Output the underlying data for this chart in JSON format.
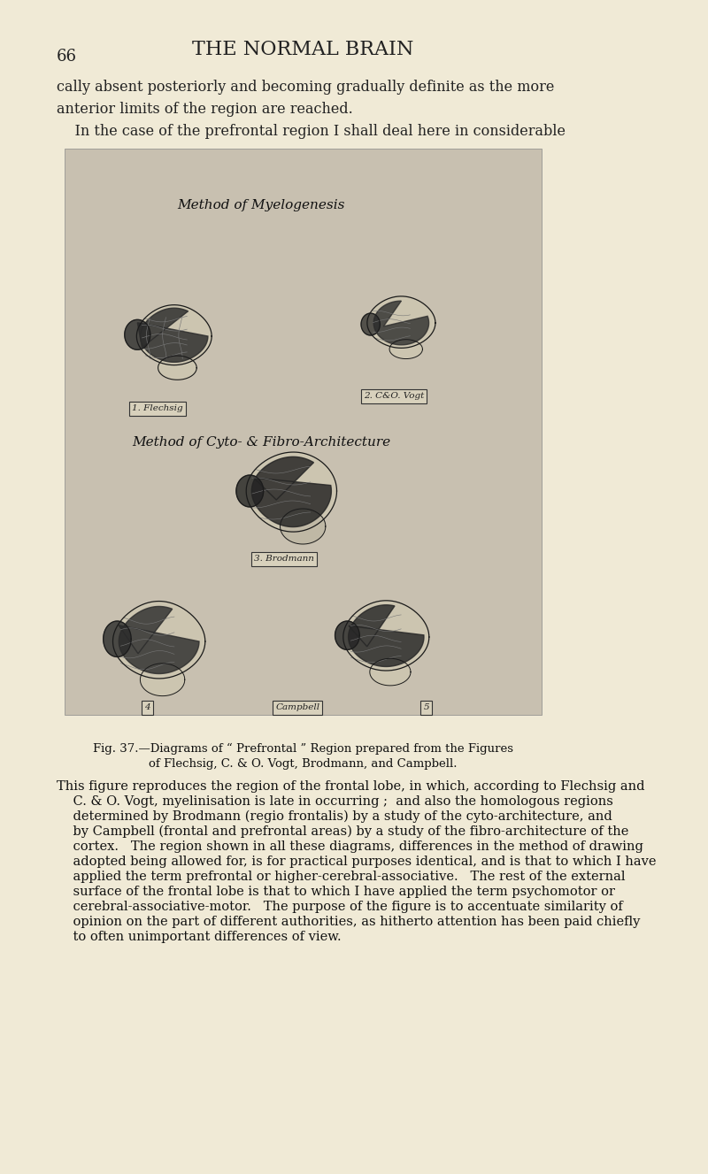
{
  "page_bg": "#f0ead6",
  "figure_bg": "#c8c0b0",
  "page_number": "66",
  "header": "THE NORMAL BRAIN",
  "top_text_line1": "cally absent posteriorly and becoming gradually definite as the more",
  "top_text_line2": "anterior limits of the region are reached.",
  "top_text_line3": "    In the case of the prefrontal region I shall deal here in considerable",
  "method1_label": "Method of Myelogenesis",
  "method2_label": "Method of Cyto- & Fibro-Architecture",
  "label1": "1. Flechsig",
  "label2": "2. C&O. Vogt",
  "label3": "3. Brodmann",
  "label4": "4",
  "label5": "Campbell",
  "label6": "5",
  "fig_caption_line1": "Fig. 37.—Diagrams of “ Prefrontal ” Region prepared from the Figures",
  "fig_caption_line2": "of Flechsig, C. & O. Vogt, Brodmann, and Campbell.",
  "body_text": [
    "This figure reproduces the region of the frontal lobe, in which, according to Flechsig and",
    "    C. & O. Vogt, myelinisation is late in occurring ;  and also the homologous regions",
    "    determined by Brodmann (regio frontalis) by a study of the cyto-architecture, and",
    "    by Campbell (frontal and prefrontal areas) by a study of the fibro-architecture of the",
    "    cortex.   The region shown in all these diagrams, differences in the method of drawing",
    "    adopted being allowed for, is for practical purposes identical, and is that to which I have",
    "    applied the term prefrontal or higher-cerebral-associative.   The rest of the external",
    "    surface of the frontal lobe is that to which I have applied the term psychomotor or",
    "    cerebral-associative-motor.   The purpose of the figure is to accentuate similarity of",
    "    opinion on the part of different authorities, as hitherto attention has been paid chiefly",
    "    to often unimportant differences of view."
  ],
  "italic_words": [
    [
      "prefrontal",
      "higher-cerebral-associative"
    ],
    [
      "psychomotor",
      "cerebral-associative-motor"
    ],
    [
      "similarity"
    ],
    [
      "differences"
    ]
  ]
}
